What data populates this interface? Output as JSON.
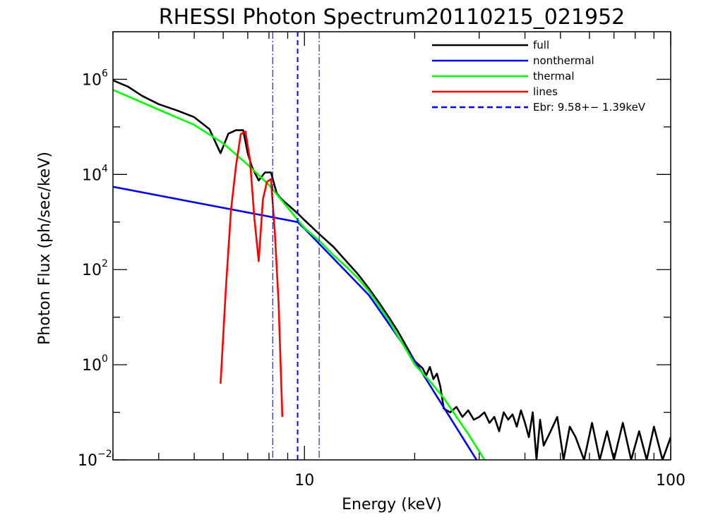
{
  "chart_data": {
    "type": "line",
    "title": "RHESSI Photon Spectrum20110215_021952",
    "xlabel": "Energy (keV)",
    "ylabel": "Photon Flux (ph/sec/keV)",
    "x_scale": "log",
    "y_scale": "log",
    "xlim": [
      3,
      100
    ],
    "ylim": [
      0.01,
      10000000.0
    ],
    "x_tick_labels": [
      {
        "value": 10,
        "label": "10"
      },
      {
        "value": 100,
        "label": "100"
      }
    ],
    "y_tick_labels": [
      {
        "value": 0.01,
        "base": "10",
        "exp": "−2"
      },
      {
        "value": 1,
        "base": "10",
        "exp": "0"
      },
      {
        "value": 100,
        "base": "10",
        "exp": "2"
      },
      {
        "value": 10000,
        "base": "10",
        "exp": "4"
      },
      {
        "value": 1000000,
        "base": "10",
        "exp": "6"
      }
    ],
    "grid": false,
    "legend_position": "top-right",
    "series": [
      {
        "name": "full",
        "color": "#000000",
        "x": [
          3.0,
          3.3,
          3.6,
          4.0,
          4.5,
          5.0,
          5.5,
          5.9,
          6.2,
          6.5,
          6.8,
          7.0,
          7.2,
          7.5,
          7.8,
          8.1,
          8.4,
          8.6,
          8.9,
          9.2,
          9.6,
          10,
          11,
          12,
          13,
          14,
          15,
          16,
          17,
          18,
          19,
          20,
          21,
          21.5,
          22,
          22.5,
          23,
          23.5,
          24,
          25,
          26,
          27,
          28,
          29,
          30,
          31,
          32,
          33,
          34,
          35,
          36,
          37,
          38,
          39,
          40,
          41,
          42,
          43,
          44,
          45,
          47,
          49,
          51,
          53,
          55,
          58,
          61,
          64,
          67,
          70,
          74,
          78,
          82,
          86,
          90,
          95,
          100
        ],
        "y": [
          950000,
          700000,
          450000,
          300000,
          220000,
          160000,
          90000,
          28000,
          72000,
          85000,
          85000,
          28000,
          14000,
          7500,
          11000,
          11000,
          4000,
          3200,
          2500,
          2000,
          1500,
          1100,
          550,
          300,
          150,
          80,
          40,
          20,
          10,
          5,
          2.4,
          1.2,
          0.85,
          0.6,
          0.9,
          0.5,
          0.65,
          0.35,
          0.12,
          0.1,
          0.13,
          0.08,
          0.11,
          0.07,
          0.08,
          0.1,
          0.06,
          0.08,
          0.04,
          0.1,
          0.07,
          0.09,
          0.05,
          0.11,
          0.06,
          0.03,
          0.1,
          0.01,
          0.07,
          0.02,
          0.04,
          0.08,
          0.01,
          0.05,
          0.03,
          0.01,
          0.06,
          0.01,
          0.04,
          0.01,
          0.06,
          0.01,
          0.04,
          0.01,
          0.05,
          0.01,
          0.03
        ]
      },
      {
        "name": "nonthermal",
        "color": "#0000ff",
        "x": [
          3.0,
          9.58,
          10,
          15,
          20,
          29.5
        ],
        "y": [
          5500,
          1000,
          730,
          29,
          1.2,
          0.01
        ]
      },
      {
        "name": "thermal",
        "color": "#00ff00",
        "x": [
          3.0,
          4.0,
          5.0,
          6.0,
          7.0,
          8.0,
          9.0,
          10,
          11,
          12,
          13,
          14,
          15,
          16,
          17,
          18,
          19,
          20,
          22,
          24,
          26,
          28,
          30,
          31
        ],
        "y": [
          600000,
          230000,
          110000,
          45000,
          16000,
          6000,
          2000,
          750,
          400,
          200,
          115,
          65,
          35,
          17,
          8.5,
          4,
          2,
          1,
          0.45,
          0.2,
          0.08,
          0.035,
          0.015,
          0.01
        ]
      },
      {
        "name": "lines",
        "color": "#ff0000",
        "x": [
          5.9,
          6.1,
          6.3,
          6.5,
          6.7,
          6.9,
          7.1,
          7.3,
          7.5,
          7.7,
          7.9,
          8.1,
          8.3,
          8.5,
          8.7
        ],
        "y": [
          0.4,
          40,
          1800,
          15000,
          70000,
          80000,
          20000,
          1200,
          150,
          3000,
          7000,
          8000,
          600,
          20,
          0.08
        ]
      }
    ],
    "legend": [
      {
        "label": "full",
        "color": "#000000",
        "style": "solid"
      },
      {
        "label": "nonthermal",
        "color": "#0000ff",
        "style": "solid"
      },
      {
        "label": "thermal",
        "color": "#00ff00",
        "style": "solid"
      },
      {
        "label": "lines",
        "color": "#ff0000",
        "style": "solid"
      },
      {
        "label": "Ebr:   9.58+−  1.39keV",
        "color": "#0000ff",
        "style": "dashed"
      }
    ],
    "vertical_lines": [
      {
        "x": 9.58,
        "color": "#0000ff",
        "style": "dashed"
      },
      {
        "x": 8.19,
        "color": "#000080",
        "style": "dashdot"
      },
      {
        "x": 10.97,
        "color": "#000080",
        "style": "dashdot"
      }
    ]
  }
}
